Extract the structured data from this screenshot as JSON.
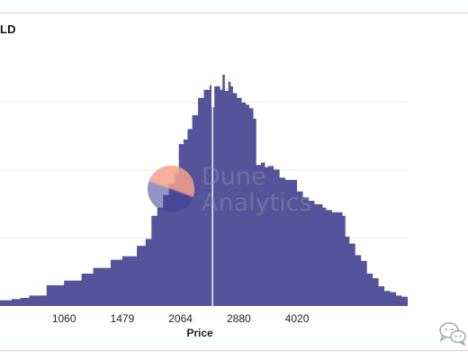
{
  "page": {
    "title_fragment": "LD",
    "watermark_line1": "Dune",
    "watermark_line2": "Analytics"
  },
  "colors": {
    "fill": "#55549a",
    "median_line": "#ffffff",
    "grid": "#eeeeee",
    "frame": "#f4c6c3"
  },
  "icons": {
    "watermark_logo": "dune-logo-icon",
    "corner_mark": "wechat-icon"
  },
  "chart_data": {
    "type": "area",
    "xlabel": "Price",
    "ylabel": "",
    "x_ticks": [
      "1060",
      "1479",
      "2064",
      "2880",
      "4020"
    ],
    "x_tick_positions": [
      1,
      2,
      3,
      4,
      5
    ],
    "x_range": [
      -0.1,
      6.9
    ],
    "y_range": [
      0,
      1
    ],
    "grid": "horizontal",
    "marker_at": 3.55,
    "series": [
      {
        "values": [
          [
            -0.1,
            0.025
          ],
          [
            0.1,
            0.03
          ],
          [
            0.25,
            0.035
          ],
          [
            0.4,
            0.045
          ],
          [
            0.7,
            0.09
          ],
          [
            1.0,
            0.11
          ],
          [
            1.3,
            0.14
          ],
          [
            1.5,
            0.165
          ],
          [
            1.8,
            0.2
          ],
          [
            2.0,
            0.215
          ],
          [
            2.25,
            0.26
          ],
          [
            2.4,
            0.29
          ],
          [
            2.5,
            0.39
          ],
          [
            2.6,
            0.425
          ],
          [
            2.7,
            0.48
          ],
          [
            2.8,
            0.53
          ],
          [
            2.9,
            0.575
          ],
          [
            2.97,
            0.7
          ],
          [
            3.05,
            0.72
          ],
          [
            3.12,
            0.765
          ],
          [
            3.2,
            0.825
          ],
          [
            3.3,
            0.9
          ],
          [
            3.4,
            0.935
          ],
          [
            3.5,
            0.955
          ],
          [
            3.53,
            0.86
          ],
          [
            3.58,
            0.95
          ],
          [
            3.63,
            0.95
          ],
          [
            3.68,
            0.935
          ],
          [
            3.72,
            1.0
          ],
          [
            3.76,
            0.93
          ],
          [
            3.82,
            0.97
          ],
          [
            3.86,
            0.95
          ],
          [
            3.9,
            0.92
          ],
          [
            3.97,
            0.9
          ],
          [
            4.05,
            0.88
          ],
          [
            4.12,
            0.87
          ],
          [
            4.18,
            0.855
          ],
          [
            4.25,
            0.81
          ],
          [
            4.3,
            0.61
          ],
          [
            4.38,
            0.62
          ],
          [
            4.45,
            0.6
          ],
          [
            4.5,
            0.605
          ],
          [
            4.6,
            0.59
          ],
          [
            4.7,
            0.555
          ],
          [
            4.8,
            0.545
          ],
          [
            5.0,
            0.495
          ],
          [
            5.1,
            0.47
          ],
          [
            5.2,
            0.455
          ],
          [
            5.3,
            0.44
          ],
          [
            5.38,
            0.44
          ],
          [
            5.44,
            0.425
          ],
          [
            5.5,
            0.415
          ],
          [
            5.6,
            0.405
          ],
          [
            5.7,
            0.405
          ],
          [
            5.78,
            0.39
          ],
          [
            5.83,
            0.3
          ],
          [
            5.9,
            0.27
          ],
          [
            6.0,
            0.22
          ],
          [
            6.1,
            0.195
          ],
          [
            6.2,
            0.14
          ],
          [
            6.3,
            0.12
          ],
          [
            6.4,
            0.085
          ],
          [
            6.5,
            0.065
          ],
          [
            6.6,
            0.06
          ],
          [
            6.7,
            0.045
          ],
          [
            6.8,
            0.04
          ],
          [
            6.9,
            0.035
          ]
        ]
      }
    ]
  }
}
